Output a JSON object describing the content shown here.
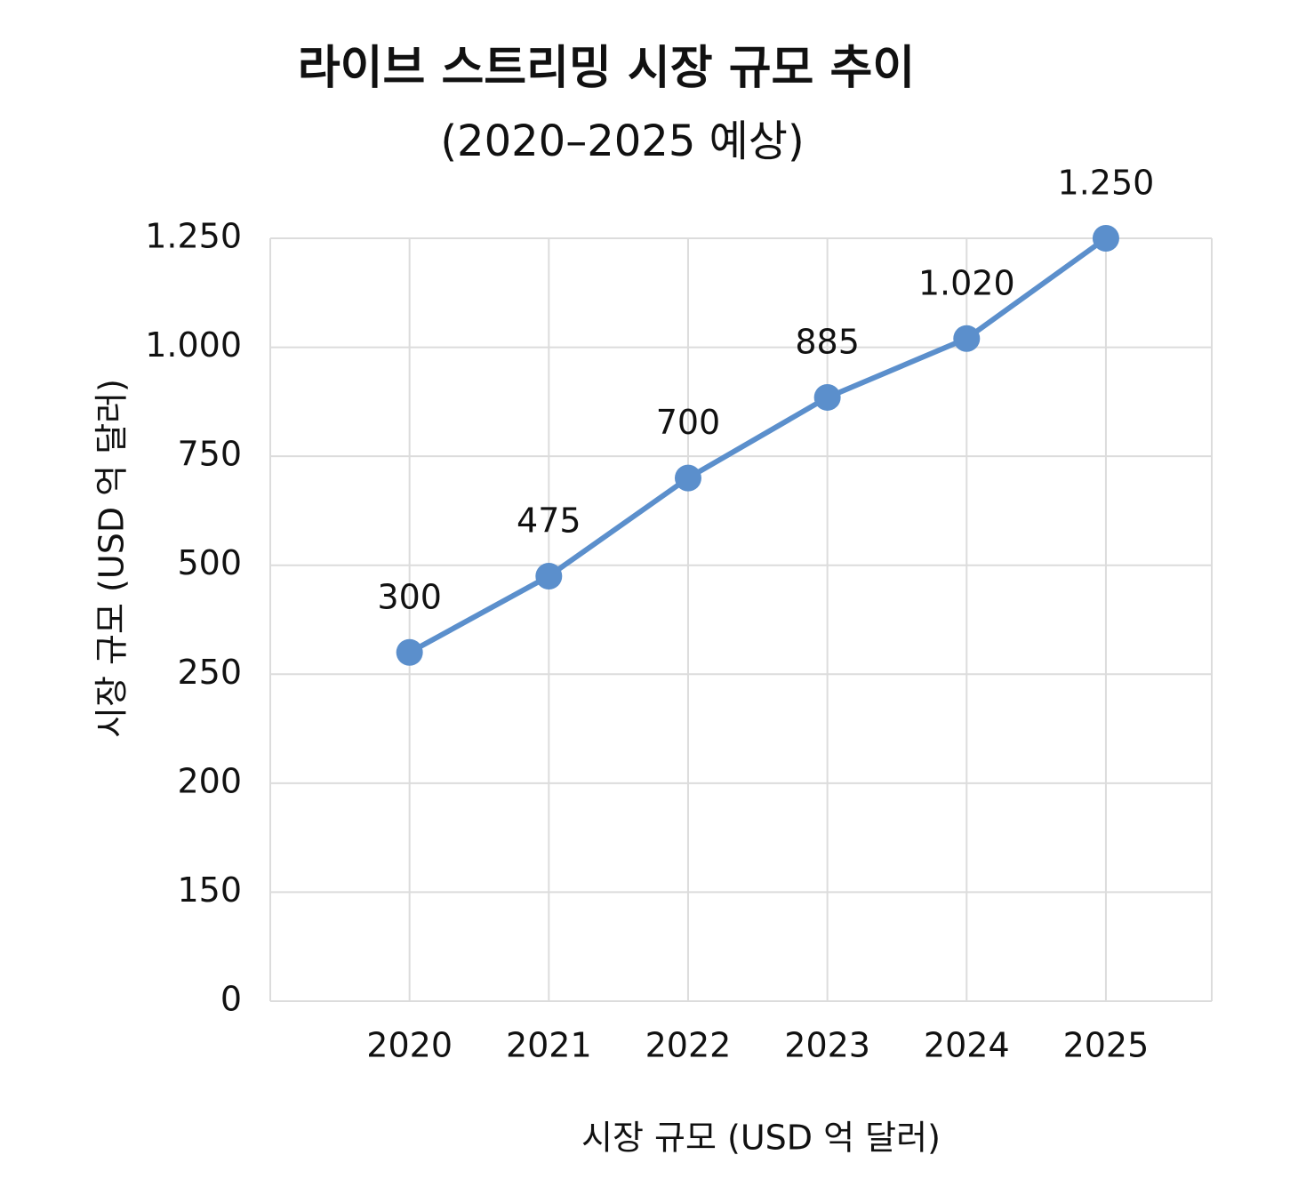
{
  "chart_data": {
    "type": "line",
    "title": "라이브 스트리밍 시장 규모 추이",
    "subtitle": "(2020–2025 예상)",
    "x_label": "시장 규모 (USD 억 달러)",
    "y_label": "시장 규모 (USD 억 달러)",
    "categories": [
      "2020",
      "2021",
      "2022",
      "2023",
      "2024",
      "2025"
    ],
    "values": [
      300,
      475,
      700,
      885,
      1020,
      1250
    ],
    "value_labels": [
      "300",
      "475",
      "700",
      "885",
      "1.020",
      "1.250"
    ],
    "color": "#5b8fcc",
    "ylim": [
      0,
      1250
    ],
    "yticks": [
      0,
      150,
      200,
      250,
      500,
      750,
      {
        "value": 1000,
        "label": "1.000"
      },
      {
        "value": 1250,
        "label": "1.250"
      }
    ],
    "grid": true
  }
}
